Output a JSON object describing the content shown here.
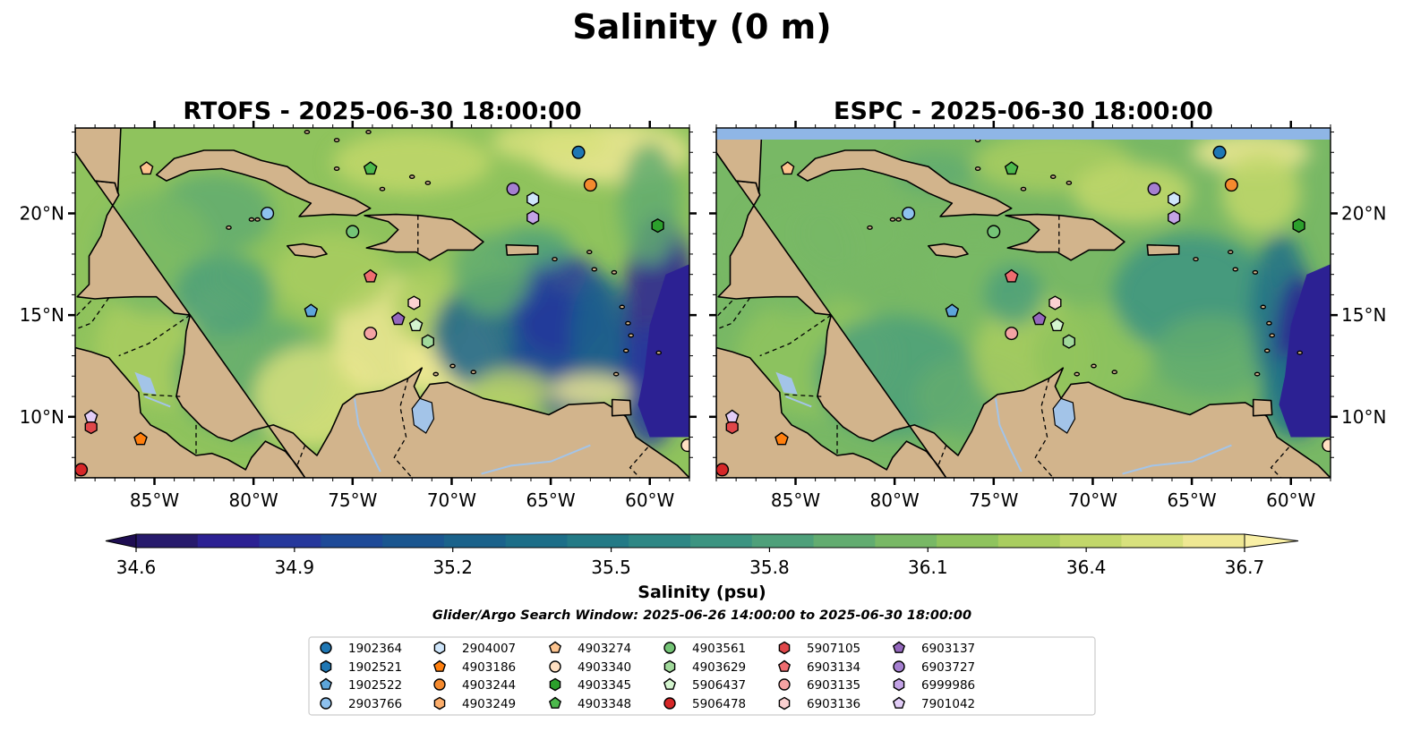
{
  "figure": {
    "title": "Salinity (0 m)"
  },
  "panels": [
    {
      "title": "RTOFS - 2025-06-30 18:00:00",
      "model": "RTOFS"
    },
    {
      "title": "ESPC - 2025-06-30 18:00:00",
      "model": "ESPC"
    }
  ],
  "colors": {
    "land": "#d2b48c",
    "lakes": "#a3c4e8",
    "colormap": [
      "#271a6c",
      "#2c2193",
      "#26389c",
      "#1e4a98",
      "#1a5690",
      "#1a628b",
      "#1c6e88",
      "#237a86",
      "#2e8785",
      "#3c9481",
      "#4ea07a",
      "#62ac70",
      "#78b865",
      "#8fc35d",
      "#a9cd5f",
      "#c2d76a",
      "#d8e17d",
      "#efe893"
    ]
  },
  "chart_data": {
    "type": "heatmap",
    "variable": "Salinity",
    "depth": "0 m",
    "colorbar": {
      "label": "Salinity (psu)",
      "min": 34.6,
      "max": 36.7,
      "ticks": [
        34.6,
        34.9,
        35.2,
        35.5,
        35.8,
        36.1,
        36.4,
        36.7
      ],
      "tick_labels": [
        "34.6",
        "34.9",
        "35.2",
        "35.5",
        "35.8",
        "36.1",
        "36.4",
        "36.7"
      ],
      "extend": "both"
    },
    "x_axis": {
      "lon_min": -89.0,
      "lon_max": -58.0,
      "ticks": [
        -85,
        -80,
        -75,
        -70,
        -65,
        -60
      ],
      "tick_labels": [
        "85°W",
        "80°W",
        "75°W",
        "70°W",
        "65°W",
        "60°W"
      ]
    },
    "y_axis": {
      "lat_min": 7.0,
      "lat_max": 24.2,
      "ticks": [
        10,
        15,
        20
      ],
      "tick_labels": [
        "10°N",
        "15°N",
        "20°N"
      ]
    },
    "search_window": "Glider/Argo Search Window: 2025-06-26 14:00:00 to 2025-06-30 18:00:00",
    "platforms": [
      {
        "id": "1902364",
        "color": "#1f77b4",
        "marker": "circle",
        "lon": -63.6,
        "lat": 23.0
      },
      {
        "id": "1902521",
        "color": "#1f77b4",
        "marker": "hexagon",
        "lon": null,
        "lat": null
      },
      {
        "id": "1902522",
        "color": "#5da5da",
        "marker": "pentagon",
        "lon": -77.1,
        "lat": 15.2
      },
      {
        "id": "2903766",
        "color": "#8ec1ee",
        "marker": "circle",
        "lon": -79.3,
        "lat": 20.0
      },
      {
        "id": "2904007",
        "color": "#cfe6fb",
        "marker": "hexagon",
        "lon": -65.9,
        "lat": 20.7
      },
      {
        "id": "4903186",
        "color": "#ff7f0e",
        "marker": "pentagon",
        "lon": -85.7,
        "lat": 8.9
      },
      {
        "id": "4903244",
        "color": "#f58a2e",
        "marker": "circle",
        "lon": -63.0,
        "lat": 21.4
      },
      {
        "id": "4903249",
        "color": "#fdae6b",
        "marker": "hexagon",
        "lon": null,
        "lat": null
      },
      {
        "id": "4903274",
        "color": "#fdc48f",
        "marker": "pentagon",
        "lon": -85.4,
        "lat": 22.2
      },
      {
        "id": "4903340",
        "color": "#ffe0c2",
        "marker": "circle",
        "lon": -58.1,
        "lat": 8.6
      },
      {
        "id": "4903345",
        "color": "#2ca02c",
        "marker": "hexagon",
        "lon": -59.6,
        "lat": 19.4
      },
      {
        "id": "4903348",
        "color": "#4cb94c",
        "marker": "pentagon",
        "lon": -74.1,
        "lat": 22.2
      },
      {
        "id": "4903561",
        "color": "#74c476",
        "marker": "circle",
        "lon": -75.0,
        "lat": 19.1
      },
      {
        "id": "4903629",
        "color": "#a1d99b",
        "marker": "hexagon",
        "lon": -71.2,
        "lat": 13.7
      },
      {
        "id": "5906437",
        "color": "#d4f5cf",
        "marker": "pentagon",
        "lon": -71.8,
        "lat": 14.5
      },
      {
        "id": "5906478",
        "color": "#d62728",
        "marker": "circle",
        "lon": -88.7,
        "lat": 7.4
      },
      {
        "id": "5907105",
        "color": "#e0474a",
        "marker": "hexagon",
        "lon": -88.2,
        "lat": 9.5
      },
      {
        "id": "6903134",
        "color": "#ee6d70",
        "marker": "pentagon",
        "lon": -74.1,
        "lat": 16.9
      },
      {
        "id": "6903135",
        "color": "#f4a3a3",
        "marker": "circle",
        "lon": -74.1,
        "lat": 14.1
      },
      {
        "id": "6903136",
        "color": "#fbd1d1",
        "marker": "hexagon",
        "lon": -71.9,
        "lat": 15.6
      },
      {
        "id": "6903137",
        "color": "#9467bd",
        "marker": "pentagon",
        "lon": -72.7,
        "lat": 14.8
      },
      {
        "id": "6903727",
        "color": "#a57fd0",
        "marker": "circle",
        "lon": -66.9,
        "lat": 21.2
      },
      {
        "id": "6999986",
        "color": "#c3a3e6",
        "marker": "hexagon",
        "lon": -65.9,
        "lat": 19.8
      },
      {
        "id": "7901042",
        "color": "#e2cdf7",
        "marker": "pentagon",
        "lon": -88.2,
        "lat": 10.0
      }
    ]
  }
}
